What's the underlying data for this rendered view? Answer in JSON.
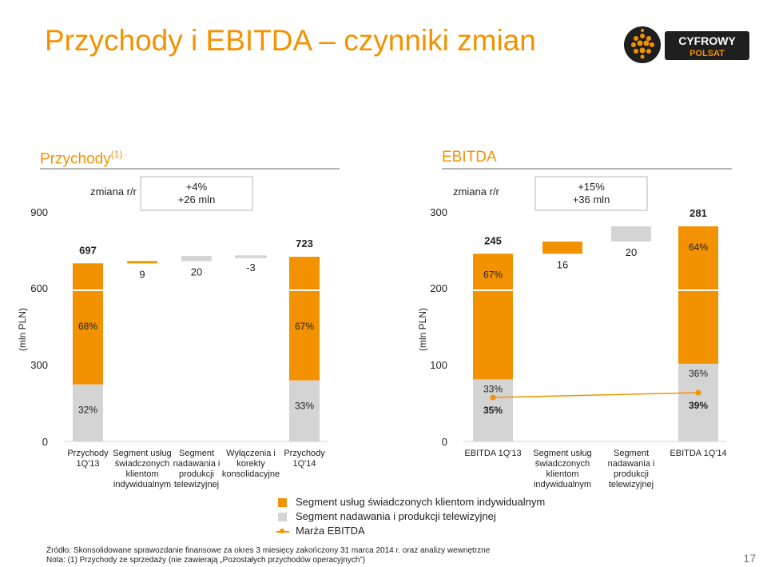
{
  "page_title": "Przychody i EBITDA – czynniki zmian",
  "logo": {
    "line1": "CYFROWY",
    "line2": "POLSAT"
  },
  "colors": {
    "orange": "#f39200",
    "gray": "#d4d4d4",
    "text": "#222222",
    "axis": "#808080"
  },
  "page_number": "17",
  "legend": {
    "items": [
      {
        "label": "Segment usług świadczonych klientom indywidualnym",
        "color": "#f39200"
      },
      {
        "label": "Segment nadawania i produkcji telewizyjnej",
        "color": "#d4d4d4"
      },
      {
        "label": "Marża EBITDA",
        "color": "#f39200"
      }
    ]
  },
  "footnotes": {
    "source": "Źródło: Skonsolidowane sprawozdanie finansowe za okres 3 miesięcy zakończony 31 marca 2014 r. oraz analizy wewnętrzne",
    "note": "Nota: (1) Przychody ze sprzedaży (nie zawierają „Pozostałych przychodów operacyjnych”)"
  },
  "chart_data": [
    {
      "type": "bar",
      "subtype": "waterfall",
      "title": "Przychody",
      "title_sup": "(1)",
      "ylabel": "(mln PLN)",
      "y_ticks_lower": [
        "0",
        "300"
      ],
      "y_ticks_upper": [
        "600",
        "900"
      ],
      "axis_break": true,
      "change_header": "zmiana r/r",
      "change_summary": "+4%\n+26 mln",
      "categories": [
        "Przychody 1Q'13",
        "Segment usług świadczonych klientom indywidualnym",
        "Segment nadawania i produkcji telewizyjnej",
        "Wyłączenia i korekty konsolidacyjne",
        "Przychody 1Q'14"
      ],
      "total_values": [
        "697",
        "",
        "",
        "",
        "723"
      ],
      "change_values": [
        "",
        "9",
        "20",
        "-3",
        ""
      ],
      "totals": [
        697,
        null,
        null,
        null,
        723
      ],
      "changes": [
        null,
        9,
        20,
        -3,
        null
      ],
      "segment_share": [
        {
          "series": "Segment usług świadczonych klientom indywidualnym",
          "values": [
            "68%",
            "",
            "",
            "",
            "67%"
          ]
        },
        {
          "series": "Segment nadawania i produkcji telewizyjnej",
          "values": [
            "32%",
            "",
            "",
            "",
            "33%"
          ]
        }
      ]
    },
    {
      "type": "bar",
      "subtype": "waterfall",
      "title": "EBITDA",
      "ylabel": "(mln PLN)",
      "y_ticks_lower": [
        "0",
        "100"
      ],
      "y_ticks_upper": [
        "200",
        "300"
      ],
      "axis_break": true,
      "change_header": "zmiana r/r",
      "change_summary": "+15%\n+36 mln",
      "categories": [
        "EBITDA 1Q'13",
        "Segment usług świadczonych klientom indywidualnym",
        "Segment nadawania i produkcji telewizyjnej",
        "EBITDA 1Q'14"
      ],
      "total_values": [
        "245",
        "",
        "",
        "281"
      ],
      "change_values": [
        "",
        "16",
        "20",
        ""
      ],
      "totals": [
        245,
        null,
        null,
        281
      ],
      "changes": [
        null,
        16,
        20,
        null
      ],
      "segment_share": [
        {
          "series": "Segment usług świadczonych klientom indywidualnym",
          "values": [
            "67%",
            "",
            "",
            "64%"
          ]
        },
        {
          "series": "Segment nadawania i produkcji telewizyjnej",
          "values": [
            "33%",
            "",
            "",
            "36%"
          ]
        }
      ],
      "margin_series": {
        "name": "Marża EBITDA",
        "values": [
          "35%",
          "",
          "",
          "39%"
        ]
      }
    }
  ]
}
